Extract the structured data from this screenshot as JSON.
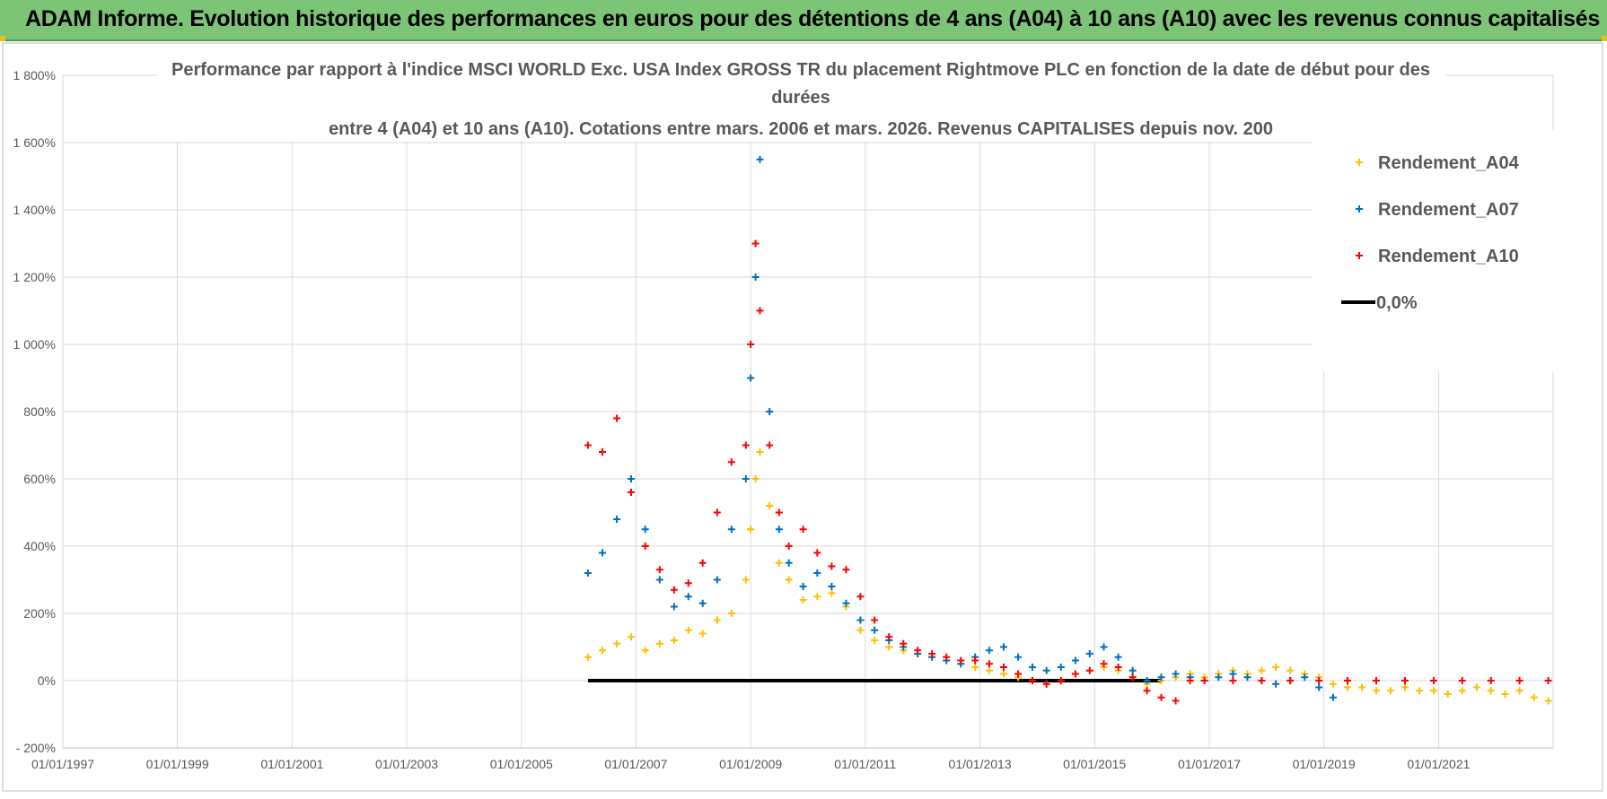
{
  "header": {
    "banner_title": "ADAM Informe. Evolution historique des performances en euros pour des détentions de 4 ans (A04) à 10 ans (A10) avec les revenus connus capitalisés"
  },
  "colors": {
    "banner_bg": "#7cc576",
    "A04": "#ffc000",
    "A07": "#0070c0",
    "A10": "#ff0000",
    "zero_line": "#000000",
    "grid": "#d9d9d9"
  },
  "chart_data": {
    "type": "scatter",
    "title": "Performance par rapport à l'indice MSCI WORLD Exc. USA Index GROSS TR  du placement Rightmove PLC en fonction de la date de début pour des durées",
    "subtitle": "entre 4 (A04) et 10 ans (A10). Cotations entre mars. 2006 et mars. 2026. Revenus CAPITALISES depuis nov. 200",
    "xlabel": "",
    "ylabel": "",
    "x_range": [
      "1997-01-01",
      "2023-01-01"
    ],
    "ylim": [
      -200,
      1800
    ],
    "y_ticks": [
      -200,
      0,
      200,
      400,
      600,
      800,
      1000,
      1200,
      1400,
      1600,
      1800
    ],
    "y_tick_labels": [
      "- 200%",
      "0%",
      "200%",
      "400%",
      "600%",
      "800%",
      "1 000%",
      "1 200%",
      "1 400%",
      "1 600%",
      "1 800%"
    ],
    "x_ticks": [
      "1997-01-01",
      "1999-01-01",
      "2001-01-01",
      "2003-01-01",
      "2005-01-01",
      "2007-01-01",
      "2009-01-01",
      "2011-01-01",
      "2013-01-01",
      "2015-01-01",
      "2017-01-01",
      "2019-01-01",
      "2021-01-01"
    ],
    "x_tick_labels": [
      "01/01/1997",
      "01/01/1999",
      "01/01/2001",
      "01/01/2003",
      "01/01/2005",
      "01/01/2007",
      "01/01/2009",
      "01/01/2011",
      "01/01/2013",
      "01/01/2015",
      "01/01/2017",
      "01/01/2019",
      "01/01/2021"
    ],
    "grid": true,
    "legend_position": "top-right",
    "series": [
      {
        "name": "Rendement_A04",
        "color": "#ffc000",
        "marker": "+",
        "x": [
          "2006-03-01",
          "2006-06-01",
          "2006-09-01",
          "2006-12-01",
          "2007-03-01",
          "2007-06-01",
          "2007-09-01",
          "2007-12-01",
          "2008-03-01",
          "2008-06-01",
          "2008-09-01",
          "2008-12-01",
          "2009-01-01",
          "2009-02-01",
          "2009-03-01",
          "2009-05-01",
          "2009-07-01",
          "2009-09-01",
          "2009-12-01",
          "2010-03-01",
          "2010-06-01",
          "2010-09-01",
          "2010-12-01",
          "2011-03-01",
          "2011-06-01",
          "2011-09-01",
          "2011-12-01",
          "2012-03-01",
          "2012-06-01",
          "2012-09-01",
          "2012-12-01",
          "2013-03-01",
          "2013-06-01",
          "2013-09-01",
          "2013-12-01",
          "2014-03-01",
          "2014-06-01",
          "2014-09-01",
          "2014-12-01",
          "2015-03-01",
          "2015-06-01",
          "2015-09-01",
          "2015-12-01",
          "2016-03-01",
          "2016-06-01",
          "2016-09-01",
          "2016-12-01",
          "2017-03-01",
          "2017-06-01",
          "2017-09-01",
          "2017-12-01",
          "2018-03-01",
          "2018-06-01",
          "2018-09-01",
          "2018-12-01",
          "2019-03-01",
          "2019-06-01",
          "2019-09-01",
          "2019-12-01",
          "2020-03-01",
          "2020-06-01",
          "2020-09-01",
          "2020-12-01",
          "2021-03-01",
          "2021-06-01",
          "2021-09-01",
          "2021-12-01",
          "2022-03-01",
          "2022-06-01",
          "2022-09-01",
          "2022-12-01"
        ],
        "y": [
          70,
          90,
          110,
          130,
          90,
          110,
          120,
          150,
          140,
          180,
          200,
          300,
          450,
          600,
          680,
          520,
          350,
          300,
          240,
          250,
          260,
          220,
          150,
          120,
          100,
          90,
          80,
          70,
          60,
          50,
          40,
          30,
          20,
          10,
          0,
          -10,
          0,
          20,
          30,
          40,
          30,
          10,
          -10,
          0,
          10,
          20,
          10,
          20,
          30,
          20,
          30,
          40,
          30,
          20,
          10,
          -10,
          -20,
          -20,
          -30,
          -30,
          -20,
          -30,
          -30,
          -40,
          -30,
          -20,
          -30,
          -40,
          -30,
          -50,
          -60
        ]
      },
      {
        "name": "Rendement_A07",
        "color": "#0070c0",
        "marker": "+",
        "x": [
          "2006-03-01",
          "2006-06-01",
          "2006-09-01",
          "2006-12-01",
          "2007-03-01",
          "2007-06-01",
          "2007-09-01",
          "2007-12-01",
          "2008-03-01",
          "2008-06-01",
          "2008-09-01",
          "2008-12-01",
          "2009-01-01",
          "2009-02-01",
          "2009-03-01",
          "2009-05-01",
          "2009-07-01",
          "2009-09-01",
          "2009-12-01",
          "2010-03-01",
          "2010-06-01",
          "2010-09-01",
          "2010-12-01",
          "2011-03-01",
          "2011-06-01",
          "2011-09-01",
          "2011-12-01",
          "2012-03-01",
          "2012-06-01",
          "2012-09-01",
          "2012-12-01",
          "2013-03-01",
          "2013-06-01",
          "2013-09-01",
          "2013-12-01",
          "2014-03-01",
          "2014-06-01",
          "2014-09-01",
          "2014-12-01",
          "2015-03-01",
          "2015-06-01",
          "2015-09-01",
          "2015-12-01",
          "2016-03-01",
          "2016-06-01",
          "2016-09-01",
          "2016-12-01",
          "2017-03-01",
          "2017-06-01",
          "2017-09-01",
          "2017-12-01",
          "2018-03-01",
          "2018-06-01",
          "2018-09-01",
          "2018-12-01",
          "2019-03-01"
        ],
        "y": [
          320,
          380,
          480,
          600,
          450,
          300,
          220,
          250,
          230,
          300,
          450,
          600,
          900,
          1200,
          1550,
          800,
          450,
          350,
          280,
          320,
          280,
          230,
          180,
          150,
          120,
          100,
          80,
          70,
          60,
          50,
          70,
          90,
          100,
          70,
          40,
          30,
          40,
          60,
          80,
          100,
          70,
          30,
          0,
          10,
          20,
          10,
          0,
          10,
          20,
          10,
          0,
          -10,
          0,
          10,
          -20,
          -50
        ]
      },
      {
        "name": "Rendement_A10",
        "color": "#ff0000",
        "marker": "+",
        "x": [
          "2006-03-01",
          "2006-06-01",
          "2006-09-01",
          "2006-12-01",
          "2007-03-01",
          "2007-06-01",
          "2007-09-01",
          "2007-12-01",
          "2008-03-01",
          "2008-06-01",
          "2008-09-01",
          "2008-12-01",
          "2009-01-01",
          "2009-02-01",
          "2009-03-01",
          "2009-05-01",
          "2009-07-01",
          "2009-09-01",
          "2009-12-01",
          "2010-03-01",
          "2010-06-01",
          "2010-09-01",
          "2010-12-01",
          "2011-03-01",
          "2011-06-01",
          "2011-09-01",
          "2011-12-01",
          "2012-03-01",
          "2012-06-01",
          "2012-09-01",
          "2012-12-01",
          "2013-03-01",
          "2013-06-01",
          "2013-09-01",
          "2013-12-01",
          "2014-03-01",
          "2014-06-01",
          "2014-09-01",
          "2014-12-01",
          "2015-03-01",
          "2015-06-01",
          "2015-09-01",
          "2015-12-01",
          "2016-03-01",
          "2016-06-01",
          "2016-09-01",
          "2016-12-01",
          "2017-06-01",
          "2017-12-01",
          "2018-06-01",
          "2018-12-01",
          "2019-06-01",
          "2019-12-01",
          "2020-06-01",
          "2020-12-01",
          "2021-06-01",
          "2021-12-01",
          "2022-06-01",
          "2022-12-01"
        ],
        "y": [
          700,
          680,
          780,
          560,
          400,
          330,
          270,
          290,
          350,
          500,
          650,
          700,
          1000,
          1300,
          1100,
          700,
          500,
          400,
          450,
          380,
          340,
          330,
          250,
          180,
          130,
          110,
          90,
          80,
          70,
          60,
          60,
          50,
          40,
          20,
          0,
          -10,
          0,
          20,
          30,
          50,
          40,
          10,
          -30,
          -50,
          -60,
          0,
          0,
          0,
          0,
          0,
          0,
          0,
          0,
          0,
          0,
          0,
          0,
          0,
          0
        ]
      }
    ],
    "reference_line": {
      "name": "0,0%",
      "y": 0,
      "x_start": "2006-03-01",
      "x_end": "2016-03-01",
      "color": "#000000"
    }
  }
}
